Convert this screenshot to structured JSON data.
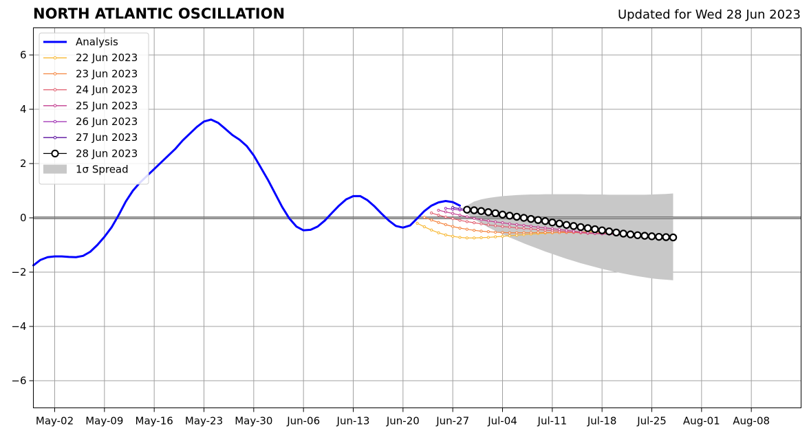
{
  "title": "NORTH ATLANTIC OSCILLATION",
  "subtitle": "Updated for Wed 28 Jun 2023",
  "chart_data": {
    "type": "line",
    "title": "NORTH ATLANTIC OSCILLATION",
    "subtitle": "Updated for Wed 28 Jun 2023",
    "xlabel": "",
    "ylabel": "",
    "x_range": [
      "2023-04-29",
      "2023-08-15"
    ],
    "ylim": [
      -7,
      7
    ],
    "y_ticks": [
      -6,
      -4,
      -2,
      0,
      2,
      4,
      6
    ],
    "y_tick_labels": [
      "−6",
      "−4",
      "−2",
      "0",
      "2",
      "4",
      "6"
    ],
    "x_ticks": [
      "2023-05-02",
      "2023-05-09",
      "2023-05-16",
      "2023-05-23",
      "2023-05-30",
      "2023-06-06",
      "2023-06-13",
      "2023-06-20",
      "2023-06-27",
      "2023-07-04",
      "2023-07-11",
      "2023-07-18",
      "2023-07-25",
      "2023-08-01",
      "2023-08-08"
    ],
    "x_tick_labels": [
      "May-02",
      "May-09",
      "May-16",
      "May-23",
      "May-30",
      "Jun-06",
      "Jun-13",
      "Jun-20",
      "Jun-27",
      "Jul-04",
      "Jul-11",
      "Jul-18",
      "Jul-25",
      "Aug-01",
      "Aug-08"
    ],
    "grid": true,
    "legend_position": "top-left",
    "series": [
      {
        "name": "Analysis",
        "color": "#0000ff",
        "style": "analysis",
        "points": [
          [
            "2023-04-29",
            -1.75
          ],
          [
            "2023-04-30",
            -1.55
          ],
          [
            "2023-05-01",
            -1.45
          ],
          [
            "2023-05-02",
            -1.42
          ],
          [
            "2023-05-03",
            -1.42
          ],
          [
            "2023-05-04",
            -1.44
          ],
          [
            "2023-05-05",
            -1.45
          ],
          [
            "2023-05-06",
            -1.4
          ],
          [
            "2023-05-07",
            -1.25
          ],
          [
            "2023-05-08",
            -1.0
          ],
          [
            "2023-05-09",
            -0.7
          ],
          [
            "2023-05-10",
            -0.35
          ],
          [
            "2023-05-11",
            0.1
          ],
          [
            "2023-05-12",
            0.6
          ],
          [
            "2023-05-13",
            1.0
          ],
          [
            "2023-05-14",
            1.3
          ],
          [
            "2023-05-15",
            1.55
          ],
          [
            "2023-05-16",
            1.8
          ],
          [
            "2023-05-17",
            2.05
          ],
          [
            "2023-05-18",
            2.3
          ],
          [
            "2023-05-19",
            2.55
          ],
          [
            "2023-05-20",
            2.85
          ],
          [
            "2023-05-21",
            3.1
          ],
          [
            "2023-05-22",
            3.35
          ],
          [
            "2023-05-23",
            3.55
          ],
          [
            "2023-05-24",
            3.62
          ],
          [
            "2023-05-25",
            3.5
          ],
          [
            "2023-05-26",
            3.28
          ],
          [
            "2023-05-27",
            3.05
          ],
          [
            "2023-05-28",
            2.88
          ],
          [
            "2023-05-29",
            2.65
          ],
          [
            "2023-05-30",
            2.3
          ],
          [
            "2023-05-31",
            1.85
          ],
          [
            "2023-06-01",
            1.4
          ],
          [
            "2023-06-02",
            0.9
          ],
          [
            "2023-06-03",
            0.4
          ],
          [
            "2023-06-04",
            -0.02
          ],
          [
            "2023-06-05",
            -0.32
          ],
          [
            "2023-06-06",
            -0.46
          ],
          [
            "2023-06-07",
            -0.44
          ],
          [
            "2023-06-08",
            -0.32
          ],
          [
            "2023-06-09",
            -0.1
          ],
          [
            "2023-06-10",
            0.18
          ],
          [
            "2023-06-11",
            0.45
          ],
          [
            "2023-06-12",
            0.68
          ],
          [
            "2023-06-13",
            0.8
          ],
          [
            "2023-06-14",
            0.8
          ],
          [
            "2023-06-15",
            0.65
          ],
          [
            "2023-06-16",
            0.42
          ],
          [
            "2023-06-17",
            0.15
          ],
          [
            "2023-06-18",
            -0.1
          ],
          [
            "2023-06-19",
            -0.3
          ],
          [
            "2023-06-20",
            -0.36
          ],
          [
            "2023-06-21",
            -0.28
          ],
          [
            "2023-06-22",
            -0.02
          ],
          [
            "2023-06-23",
            0.25
          ],
          [
            "2023-06-24",
            0.45
          ],
          [
            "2023-06-25",
            0.57
          ],
          [
            "2023-06-26",
            0.62
          ],
          [
            "2023-06-27",
            0.58
          ],
          [
            "2023-06-28",
            0.45
          ]
        ]
      },
      {
        "name": "22 Jun 2023",
        "color": "#f7b731",
        "style": "forecast",
        "start": "2023-06-22",
        "values": [
          -0.2,
          -0.33,
          -0.45,
          -0.55,
          -0.63,
          -0.68,
          -0.72,
          -0.74,
          -0.74,
          -0.73,
          -0.72,
          -0.7,
          -0.68,
          -0.66,
          -0.64,
          -0.62,
          -0.6,
          -0.58,
          -0.56,
          -0.55,
          -0.54,
          -0.53,
          -0.52,
          -0.52,
          -0.51,
          -0.51,
          -0.5,
          -0.5
        ]
      },
      {
        "name": "23 Jun 2023",
        "color": "#f4843e",
        "style": "forecast",
        "start": "2023-06-23",
        "values": [
          0.02,
          -0.08,
          -0.17,
          -0.25,
          -0.32,
          -0.38,
          -0.42,
          -0.46,
          -0.49,
          -0.51,
          -0.53,
          -0.54,
          -0.55,
          -0.55,
          -0.55,
          -0.55,
          -0.54,
          -0.54,
          -0.54,
          -0.54,
          -0.54,
          -0.54,
          -0.55,
          -0.55,
          -0.56,
          -0.56,
          -0.56,
          -0.57
        ]
      },
      {
        "name": "24 Jun 2023",
        "color": "#e05b6c",
        "style": "forecast",
        "start": "2023-06-24",
        "values": [
          0.18,
          0.1,
          0.03,
          -0.03,
          -0.09,
          -0.14,
          -0.18,
          -0.22,
          -0.26,
          -0.29,
          -0.32,
          -0.34,
          -0.37,
          -0.39,
          -0.41,
          -0.43,
          -0.45,
          -0.47,
          -0.49,
          -0.51,
          -0.53,
          -0.55,
          -0.57,
          -0.58,
          -0.59,
          -0.6,
          -0.61,
          -0.62
        ]
      },
      {
        "name": "25 Jun 2023",
        "color": "#c23b8e",
        "style": "forecast",
        "start": "2023-06-25",
        "values": [
          0.28,
          0.22,
          0.16,
          0.1,
          0.04,
          -0.02,
          -0.07,
          -0.11,
          -0.15,
          -0.18,
          -0.22,
          -0.25,
          -0.28,
          -0.31,
          -0.34,
          -0.37,
          -0.4,
          -0.43,
          -0.46,
          -0.49,
          -0.52,
          -0.55,
          -0.57,
          -0.59,
          -0.6,
          -0.61,
          -0.62,
          -0.63
        ]
      },
      {
        "name": "26 Jun 2023",
        "color": "#9b26b0",
        "style": "forecast",
        "start": "2023-06-26",
        "values": [
          0.35,
          0.32,
          0.29,
          0.25,
          0.22,
          0.18,
          0.14,
          0.1,
          0.06,
          0.02,
          -0.02,
          -0.06,
          -0.1,
          -0.14,
          -0.18,
          -0.22,
          -0.26,
          -0.3,
          -0.34,
          -0.38,
          -0.42,
          -0.46,
          -0.49,
          -0.52,
          -0.55,
          -0.58,
          -0.6,
          -0.62
        ]
      },
      {
        "name": "27 Jun 2023",
        "color": "#5a0f9e",
        "style": "forecast",
        "start": "2023-06-27",
        "values": [
          0.38,
          0.34,
          0.3,
          0.26,
          0.22,
          0.18,
          0.14,
          0.1,
          0.06,
          0.02,
          -0.02,
          -0.06,
          -0.1,
          -0.14,
          -0.18,
          -0.22,
          -0.26,
          -0.3,
          -0.34,
          -0.38,
          -0.42,
          -0.46,
          -0.5,
          -0.53,
          -0.56,
          -0.59,
          -0.62,
          -0.65
        ]
      },
      {
        "name": "28 Jun 2023",
        "color": "#000000",
        "style": "current",
        "start": "2023-06-29",
        "values": [
          0.3,
          0.28,
          0.25,
          0.21,
          0.17,
          0.12,
          0.08,
          0.04,
          0.0,
          -0.04,
          -0.08,
          -0.12,
          -0.17,
          -0.21,
          -0.26,
          -0.3,
          -0.34,
          -0.38,
          -0.42,
          -0.46,
          -0.5,
          -0.54,
          -0.58,
          -0.61,
          -0.64,
          -0.66,
          -0.68,
          -0.7,
          -0.71,
          -0.72
        ]
      }
    ],
    "spread": {
      "name": "1σ Spread",
      "color": "#c8c8c8",
      "start": "2023-06-29",
      "upper": [
        0.45,
        0.6,
        0.68,
        0.73,
        0.77,
        0.8,
        0.82,
        0.84,
        0.85,
        0.86,
        0.86,
        0.87,
        0.87,
        0.87,
        0.87,
        0.87,
        0.87,
        0.86,
        0.86,
        0.86,
        0.85,
        0.85,
        0.85,
        0.85,
        0.85,
        0.85,
        0.86,
        0.87,
        0.88,
        0.9
      ],
      "lower": [
        0.15,
        -0.05,
        -0.2,
        -0.35,
        -0.48,
        -0.6,
        -0.72,
        -0.83,
        -0.94,
        -1.04,
        -1.14,
        -1.24,
        -1.33,
        -1.42,
        -1.51,
        -1.59,
        -1.67,
        -1.74,
        -1.81,
        -1.88,
        -1.94,
        -2.0,
        -2.05,
        -2.1,
        -2.15,
        -2.19,
        -2.23,
        -2.26,
        -2.28,
        -2.3
      ]
    }
  }
}
